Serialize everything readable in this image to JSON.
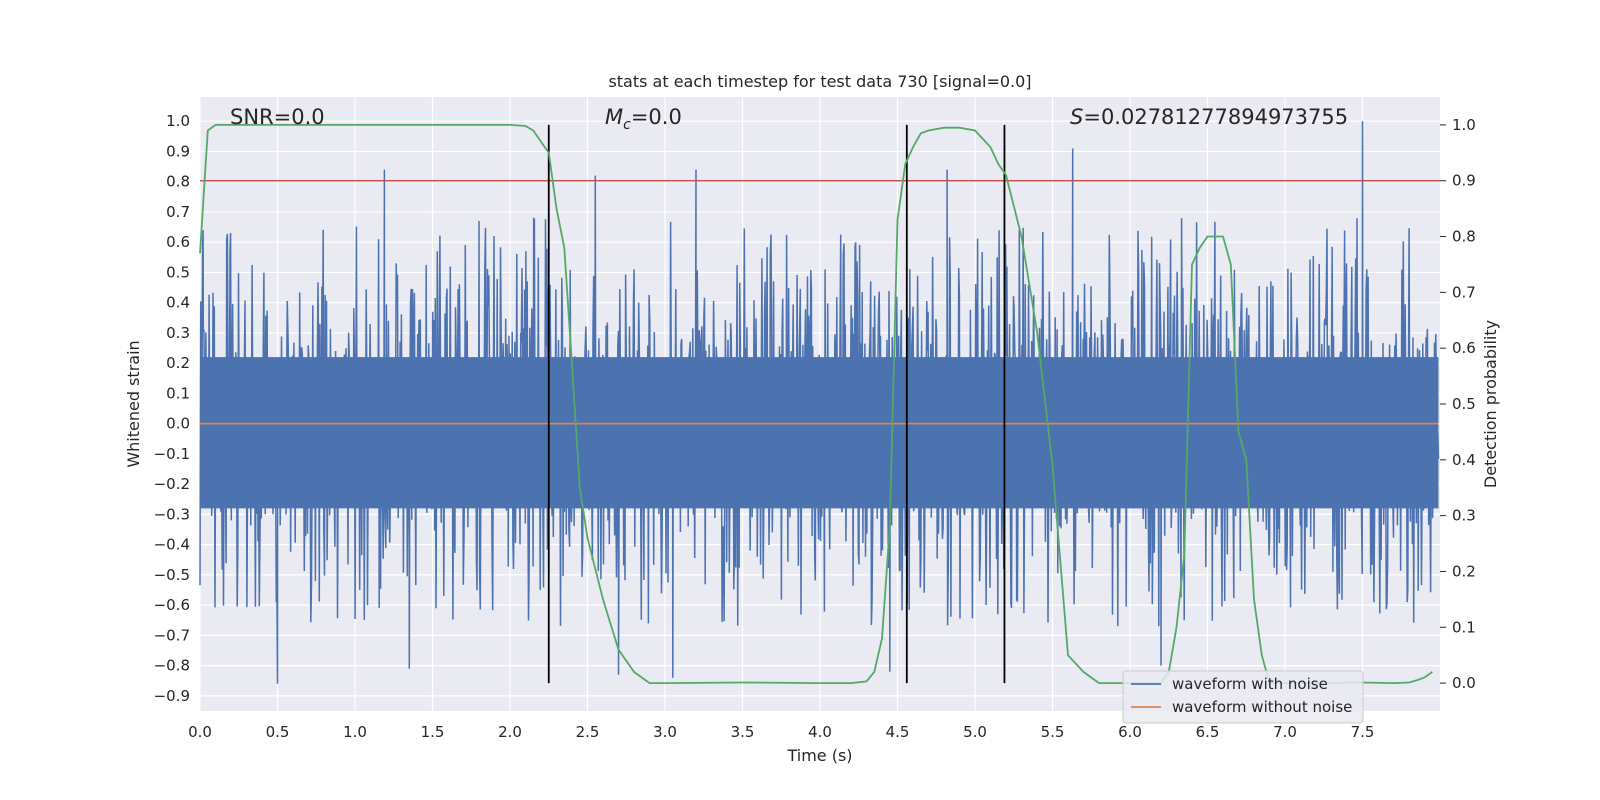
{
  "chart_data": {
    "type": "line",
    "title": "stats at each timestep for test data 730 [signal=0.0]",
    "xlabel": "Time (s)",
    "ylabel": "Whitened strain",
    "ylabel_right": "Detection probability",
    "xlim": [
      0.0,
      8.0
    ],
    "ylim": [
      -0.95,
      1.08
    ],
    "ylim_right": [
      -0.05,
      1.05
    ],
    "grid": true,
    "legend_position": "lower right",
    "x_ticks": [
      0.0,
      0.5,
      1.0,
      1.5,
      2.0,
      2.5,
      3.0,
      3.5,
      4.0,
      4.5,
      5.0,
      5.5,
      6.0,
      6.5,
      7.0,
      7.5
    ],
    "x_tick_labels": [
      "0.0",
      "0.5",
      "1.0",
      "1.5",
      "2.0",
      "2.5",
      "3.0",
      "3.5",
      "4.0",
      "4.5",
      "5.0",
      "5.5",
      "6.0",
      "6.5",
      "7.0",
      "7.5"
    ],
    "y_ticks": [
      1.0,
      0.9,
      0.8,
      0.7,
      0.6,
      0.5,
      0.4,
      0.3,
      0.2,
      0.1,
      0.0,
      -0.1,
      -0.2,
      -0.3,
      -0.4,
      -0.5,
      -0.6,
      -0.7,
      -0.8,
      -0.9
    ],
    "y_tick_labels": [
      "1.0",
      "0.9",
      "0.8",
      "0.7",
      "0.6",
      "0.5",
      "0.4",
      "0.3",
      "0.2",
      "0.1",
      "0.0",
      "−0.1",
      "−0.2",
      "−0.3",
      "−0.4",
      "−0.5",
      "−0.6",
      "−0.7",
      "−0.8",
      "−0.9"
    ],
    "y_right_ticks": [
      1.0,
      0.9,
      0.8,
      0.7,
      0.6,
      0.5,
      0.4,
      0.3,
      0.2,
      0.1,
      0.0
    ],
    "y_right_tick_labels": [
      "1.0",
      "0.9",
      "0.8",
      "0.7",
      "0.6",
      "0.5",
      "0.4",
      "0.3",
      "0.2",
      "0.1",
      "0.0"
    ],
    "annotations": {
      "snr": "SNR=0.0",
      "mc_symbol": "M",
      "mc_sub": "c",
      "mc_value": "=0.0",
      "s_symbol": "S",
      "s_value": "=0.02781277894973755"
    },
    "series": [
      {
        "name": "waveform with noise",
        "color": "#4c72b0",
        "kind": "noise",
        "envelope_upper_peaks": [
          [
            0.02,
            0.64
          ],
          [
            1.19,
            0.84
          ],
          [
            1.8,
            0.67
          ],
          [
            2.55,
            0.82
          ],
          [
            3.2,
            0.84
          ],
          [
            4.82,
            0.84
          ],
          [
            5.63,
            0.91
          ],
          [
            7.5,
            1.0
          ]
        ],
        "envelope_lower_peaks": [
          [
            0.5,
            -0.86
          ],
          [
            1.35,
            -0.81
          ],
          [
            2.7,
            -0.83
          ],
          [
            3.05,
            -0.84
          ],
          [
            4.45,
            -0.82
          ],
          [
            6.2,
            -0.8
          ]
        ],
        "band_upper": 0.4,
        "band_lower": -0.45
      },
      {
        "name": "waveform without noise",
        "color": "#dd8452",
        "kind": "flat",
        "value": 0.0
      },
      {
        "name": "",
        "color": "#55a868",
        "axis": "right",
        "kind": "probability",
        "x": [
          0.0,
          0.05,
          0.1,
          0.2,
          0.5,
          1.0,
          1.5,
          2.0,
          2.1,
          2.15,
          2.2,
          2.25,
          2.3,
          2.35,
          2.4,
          2.45,
          2.5,
          2.6,
          2.7,
          2.8,
          2.9,
          3.0,
          3.5,
          4.0,
          4.2,
          4.3,
          4.35,
          4.4,
          4.45,
          4.5,
          4.55,
          4.6,
          4.65,
          4.7,
          4.8,
          4.9,
          5.0,
          5.05,
          5.1,
          5.15,
          5.2,
          5.3,
          5.4,
          5.5,
          5.6,
          5.7,
          5.8,
          6.0,
          6.2,
          6.25,
          6.3,
          6.35,
          6.4,
          6.45,
          6.5,
          6.55,
          6.6,
          6.65,
          6.7,
          6.75,
          6.8,
          6.85,
          6.9,
          7.0,
          7.2,
          7.5,
          7.7,
          7.8,
          7.85,
          7.9,
          7.95
        ],
        "y": [
          0.77,
          0.99,
          1.0,
          1.0,
          1.0,
          1.0,
          1.0,
          1.0,
          0.998,
          0.99,
          0.97,
          0.95,
          0.85,
          0.78,
          0.57,
          0.35,
          0.26,
          0.15,
          0.06,
          0.02,
          0.0,
          0.0,
          0.001,
          0.0,
          0.0,
          0.003,
          0.02,
          0.08,
          0.28,
          0.83,
          0.93,
          0.96,
          0.985,
          0.99,
          0.995,
          0.995,
          0.99,
          0.975,
          0.96,
          0.93,
          0.91,
          0.8,
          0.63,
          0.39,
          0.05,
          0.02,
          0.0,
          0.0,
          0.0,
          0.02,
          0.1,
          0.23,
          0.75,
          0.78,
          0.8,
          0.8,
          0.8,
          0.75,
          0.45,
          0.4,
          0.15,
          0.05,
          0.0,
          0.0,
          0.0,
          0.001,
          0.0,
          0.001,
          0.005,
          0.01,
          0.02
        ]
      }
    ],
    "threshold_line": {
      "color": "#c44e52",
      "value_right": 0.9
    },
    "vertical_lines": {
      "color": "#000000",
      "x": [
        2.25,
        4.56,
        5.19
      ]
    },
    "legend": [
      {
        "label": "waveform with noise",
        "color": "#4c72b0"
      },
      {
        "label": "waveform without noise",
        "color": "#dd8452"
      }
    ]
  }
}
